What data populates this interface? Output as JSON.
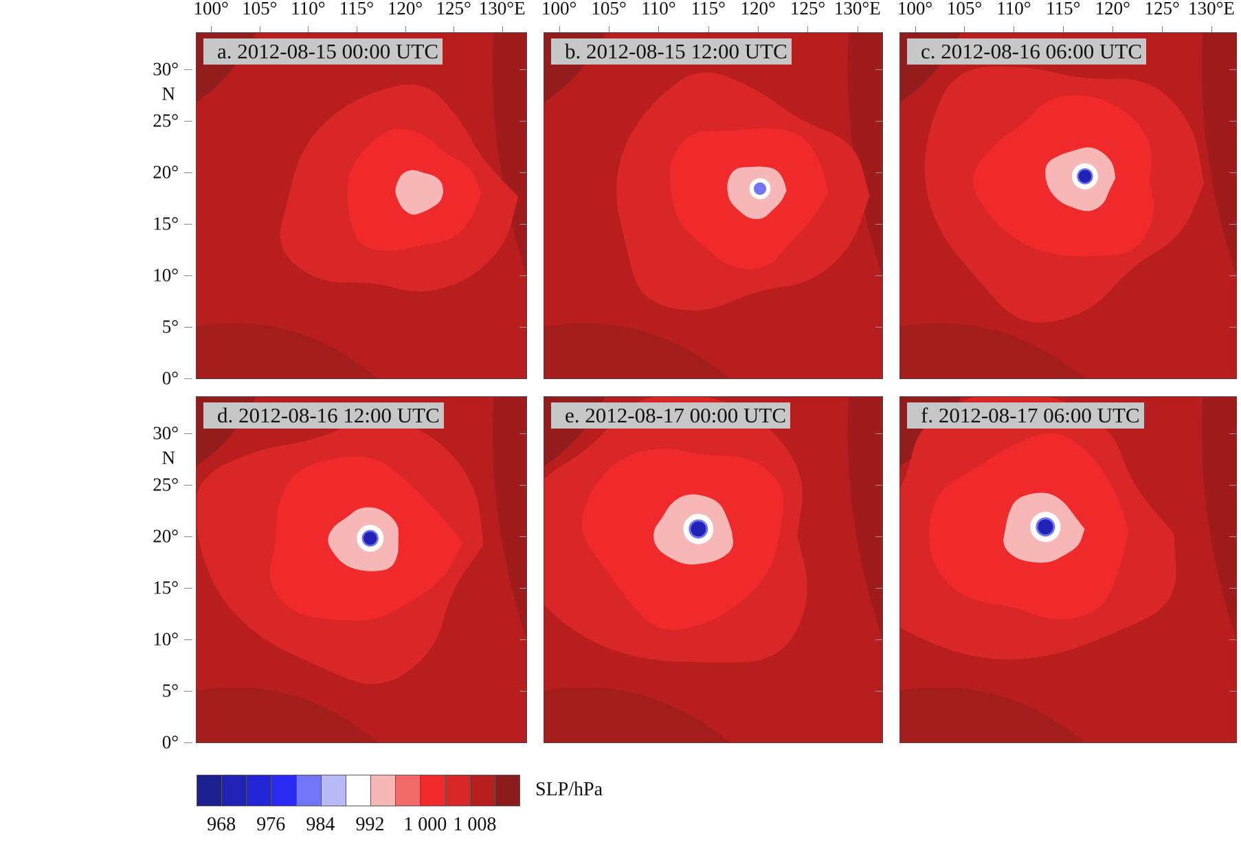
{
  "lon_ticks": [
    "100°",
    "105°",
    "110°",
    "115°",
    "120°",
    "125°",
    "130°E"
  ],
  "lat_ticks": [
    "30°",
    "25°",
    "20°",
    "15°",
    "10°",
    "5°",
    "0°"
  ],
  "lat_unit": "N",
  "panels": [
    {
      "title": "a. 2012-08-15 00:00 UTC",
      "center_lon": 121.8,
      "center_lat": 18.3,
      "intensity": 0.15
    },
    {
      "title": "b. 2012-08-15 12:00 UTC",
      "center_lon": 120.2,
      "center_lat": 18.4,
      "intensity": 0.45
    },
    {
      "title": "c. 2012-08-16 06:00 UTC",
      "center_lon": 117.2,
      "center_lat": 19.6,
      "intensity": 0.75
    },
    {
      "title": "d. 2012-08-16 12:00 UTC",
      "center_lon": 116.4,
      "center_lat": 19.8,
      "intensity": 0.8
    },
    {
      "title": "e. 2012-08-17 00:00 UTC",
      "center_lon": 114.0,
      "center_lat": 20.7,
      "intensity": 1.0
    },
    {
      "title": "f. 2012-08-17 06:00 UTC",
      "center_lon": 113.2,
      "center_lat": 20.9,
      "intensity": 1.0
    }
  ],
  "legend": {
    "unit": "SLP/hPa",
    "tick_labels": [
      "968",
      "976",
      "984",
      "992",
      "1 000",
      "1 008"
    ],
    "colors": [
      "#1c1f8f",
      "#1f22b5",
      "#2323d6",
      "#2a2af5",
      "#7373f5",
      "#b9b9f5",
      "#ffffff",
      "#f7b7b7",
      "#f06868",
      "#f02a2a",
      "#d92626",
      "#b81e1e",
      "#8c1c1c"
    ]
  }
}
